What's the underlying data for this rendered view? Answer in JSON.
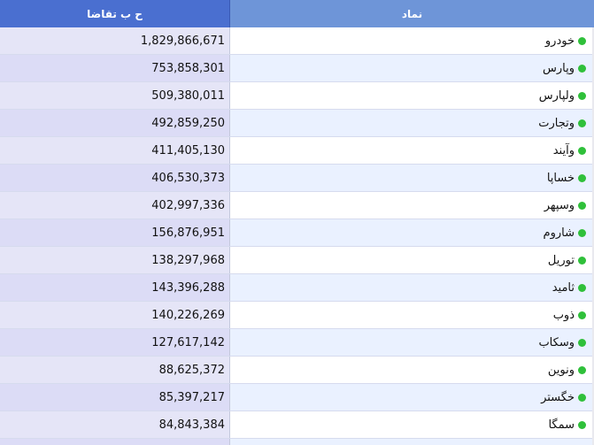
{
  "table": {
    "headers": {
      "symbol": "نماد",
      "volume": "ح ب تقاضا"
    },
    "status_color": "#2fc03a",
    "rows": [
      {
        "symbol": "خودرو",
        "volume": "1,829,866,671"
      },
      {
        "symbol": "وپارس",
        "volume": "753,858,301"
      },
      {
        "symbol": "ولپارس",
        "volume": "509,380,011"
      },
      {
        "symbol": "وتجارت",
        "volume": "492,859,250"
      },
      {
        "symbol": "وآیند",
        "volume": "411,405,130"
      },
      {
        "symbol": "خساپا",
        "volume": "406,530,373"
      },
      {
        "symbol": "وسپهر",
        "volume": "402,997,336"
      },
      {
        "symbol": "شاروم",
        "volume": "156,876,951"
      },
      {
        "symbol": "توریل",
        "volume": "138,297,968"
      },
      {
        "symbol": "ثامید",
        "volume": "143,396,288"
      },
      {
        "symbol": "ذوب",
        "volume": "140,226,269"
      },
      {
        "symbol": "وسکاب",
        "volume": "127,617,142"
      },
      {
        "symbol": "ونوین",
        "volume": "88,625,372"
      },
      {
        "symbol": "خگستر",
        "volume": "85,397,217"
      },
      {
        "symbol": "سمگا",
        "volume": "84,843,384"
      },
      {
        "symbol": "",
        "volume": ""
      }
    ]
  }
}
